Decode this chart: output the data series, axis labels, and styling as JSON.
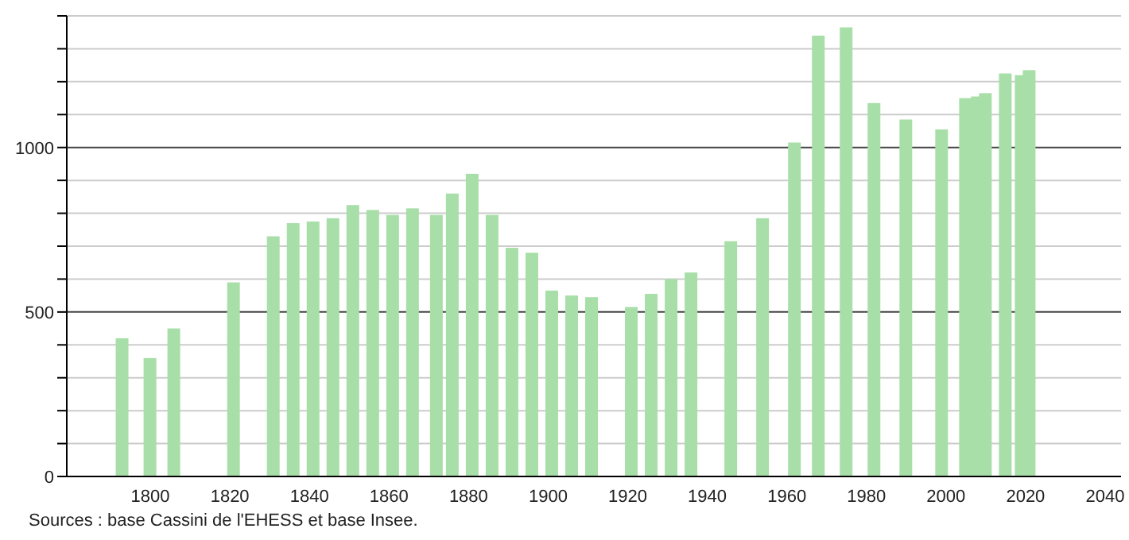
{
  "chart_data": {
    "type": "bar",
    "x": [
      1793,
      1800,
      1806,
      1821,
      1831,
      1836,
      1841,
      1846,
      1851,
      1856,
      1861,
      1866,
      1872,
      1876,
      1881,
      1886,
      1891,
      1896,
      1901,
      1906,
      1911,
      1921,
      1926,
      1931,
      1936,
      1946,
      1954,
      1962,
      1968,
      1975,
      1982,
      1990,
      1999,
      2005,
      2008,
      2010,
      2015,
      2019,
      2021
    ],
    "values": [
      420,
      360,
      450,
      590,
      730,
      770,
      775,
      785,
      825,
      810,
      795,
      815,
      795,
      860,
      920,
      795,
      695,
      680,
      565,
      550,
      545,
      515,
      555,
      600,
      620,
      715,
      785,
      1015,
      1340,
      1365,
      1135,
      1085,
      1055,
      1150,
      1155,
      1165,
      1225,
      1220,
      1235
    ],
    "color": "#a8dfa8",
    "xlim": [
      1779,
      2044
    ],
    "xticks": [
      1800,
      1820,
      1840,
      1860,
      1880,
      1900,
      1920,
      1940,
      1960,
      1980,
      2000,
      2020,
      2040
    ],
    "ylim": [
      0,
      1400
    ],
    "yticks": [
      0,
      {
        "value": 100,
        "label": null
      },
      {
        "value": 200,
        "label": null
      },
      {
        "value": 300,
        "label": null
      },
      {
        "value": 400,
        "label": null
      },
      500,
      {
        "value": 600,
        "label": null
      },
      {
        "value": 700,
        "label": null
      },
      {
        "value": 800,
        "label": null
      },
      {
        "value": 900,
        "label": null
      },
      1000,
      {
        "value": 1100,
        "label": null
      },
      {
        "value": 1200,
        "label": null
      },
      {
        "value": 1300,
        "label": null
      },
      {
        "value": 1400,
        "label": null
      }
    ],
    "grid": "y",
    "annotations": [
      "Sources : base Cassini de l'EHESS et base Insee."
    ]
  }
}
